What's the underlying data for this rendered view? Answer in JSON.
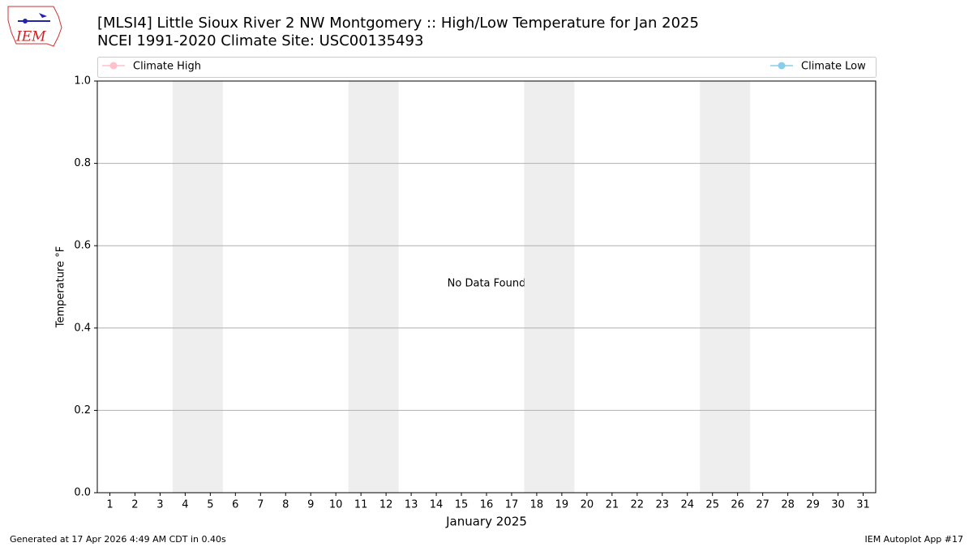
{
  "logo_text": "IEM",
  "footer": {
    "left": "Generated at 17 Apr 2026 4:49 AM CDT in 0.40s",
    "right": "IEM Autoplot App #17"
  },
  "chart_data": {
    "type": "line",
    "title": "[MLSI4] Little Sioux River 2 NW Montgomery :: High/Low Temperature for Jan 2025",
    "subtitle": "NCEI 1991-2020 Climate Site: USC00135493",
    "xlabel": "January 2025",
    "ylabel": "Temperature °F",
    "annotation": "No Data Found",
    "xlim": [
      0.5,
      31.5
    ],
    "xticks": [
      1,
      2,
      3,
      4,
      5,
      6,
      7,
      8,
      9,
      10,
      11,
      12,
      13,
      14,
      15,
      16,
      17,
      18,
      19,
      20,
      21,
      22,
      23,
      24,
      25,
      26,
      27,
      28,
      29,
      30,
      31
    ],
    "ylim": [
      0,
      1
    ],
    "yticks": [
      {
        "value": 0,
        "label": "0.0"
      },
      0.2,
      0.4,
      0.6,
      0.8,
      {
        "value": 1,
        "label": "1.0"
      }
    ],
    "grid": true,
    "shaded_spans": [
      [
        3.5,
        5.5
      ],
      [
        10.5,
        12.5
      ],
      [
        17.5,
        19.5
      ],
      [
        24.5,
        26.5
      ]
    ],
    "shade_color": "#eeeeee",
    "series": [
      {
        "name": "Climate High",
        "color": "pink",
        "values": []
      },
      {
        "name": "Climate Low",
        "color": "skyblue",
        "values": []
      }
    ]
  }
}
